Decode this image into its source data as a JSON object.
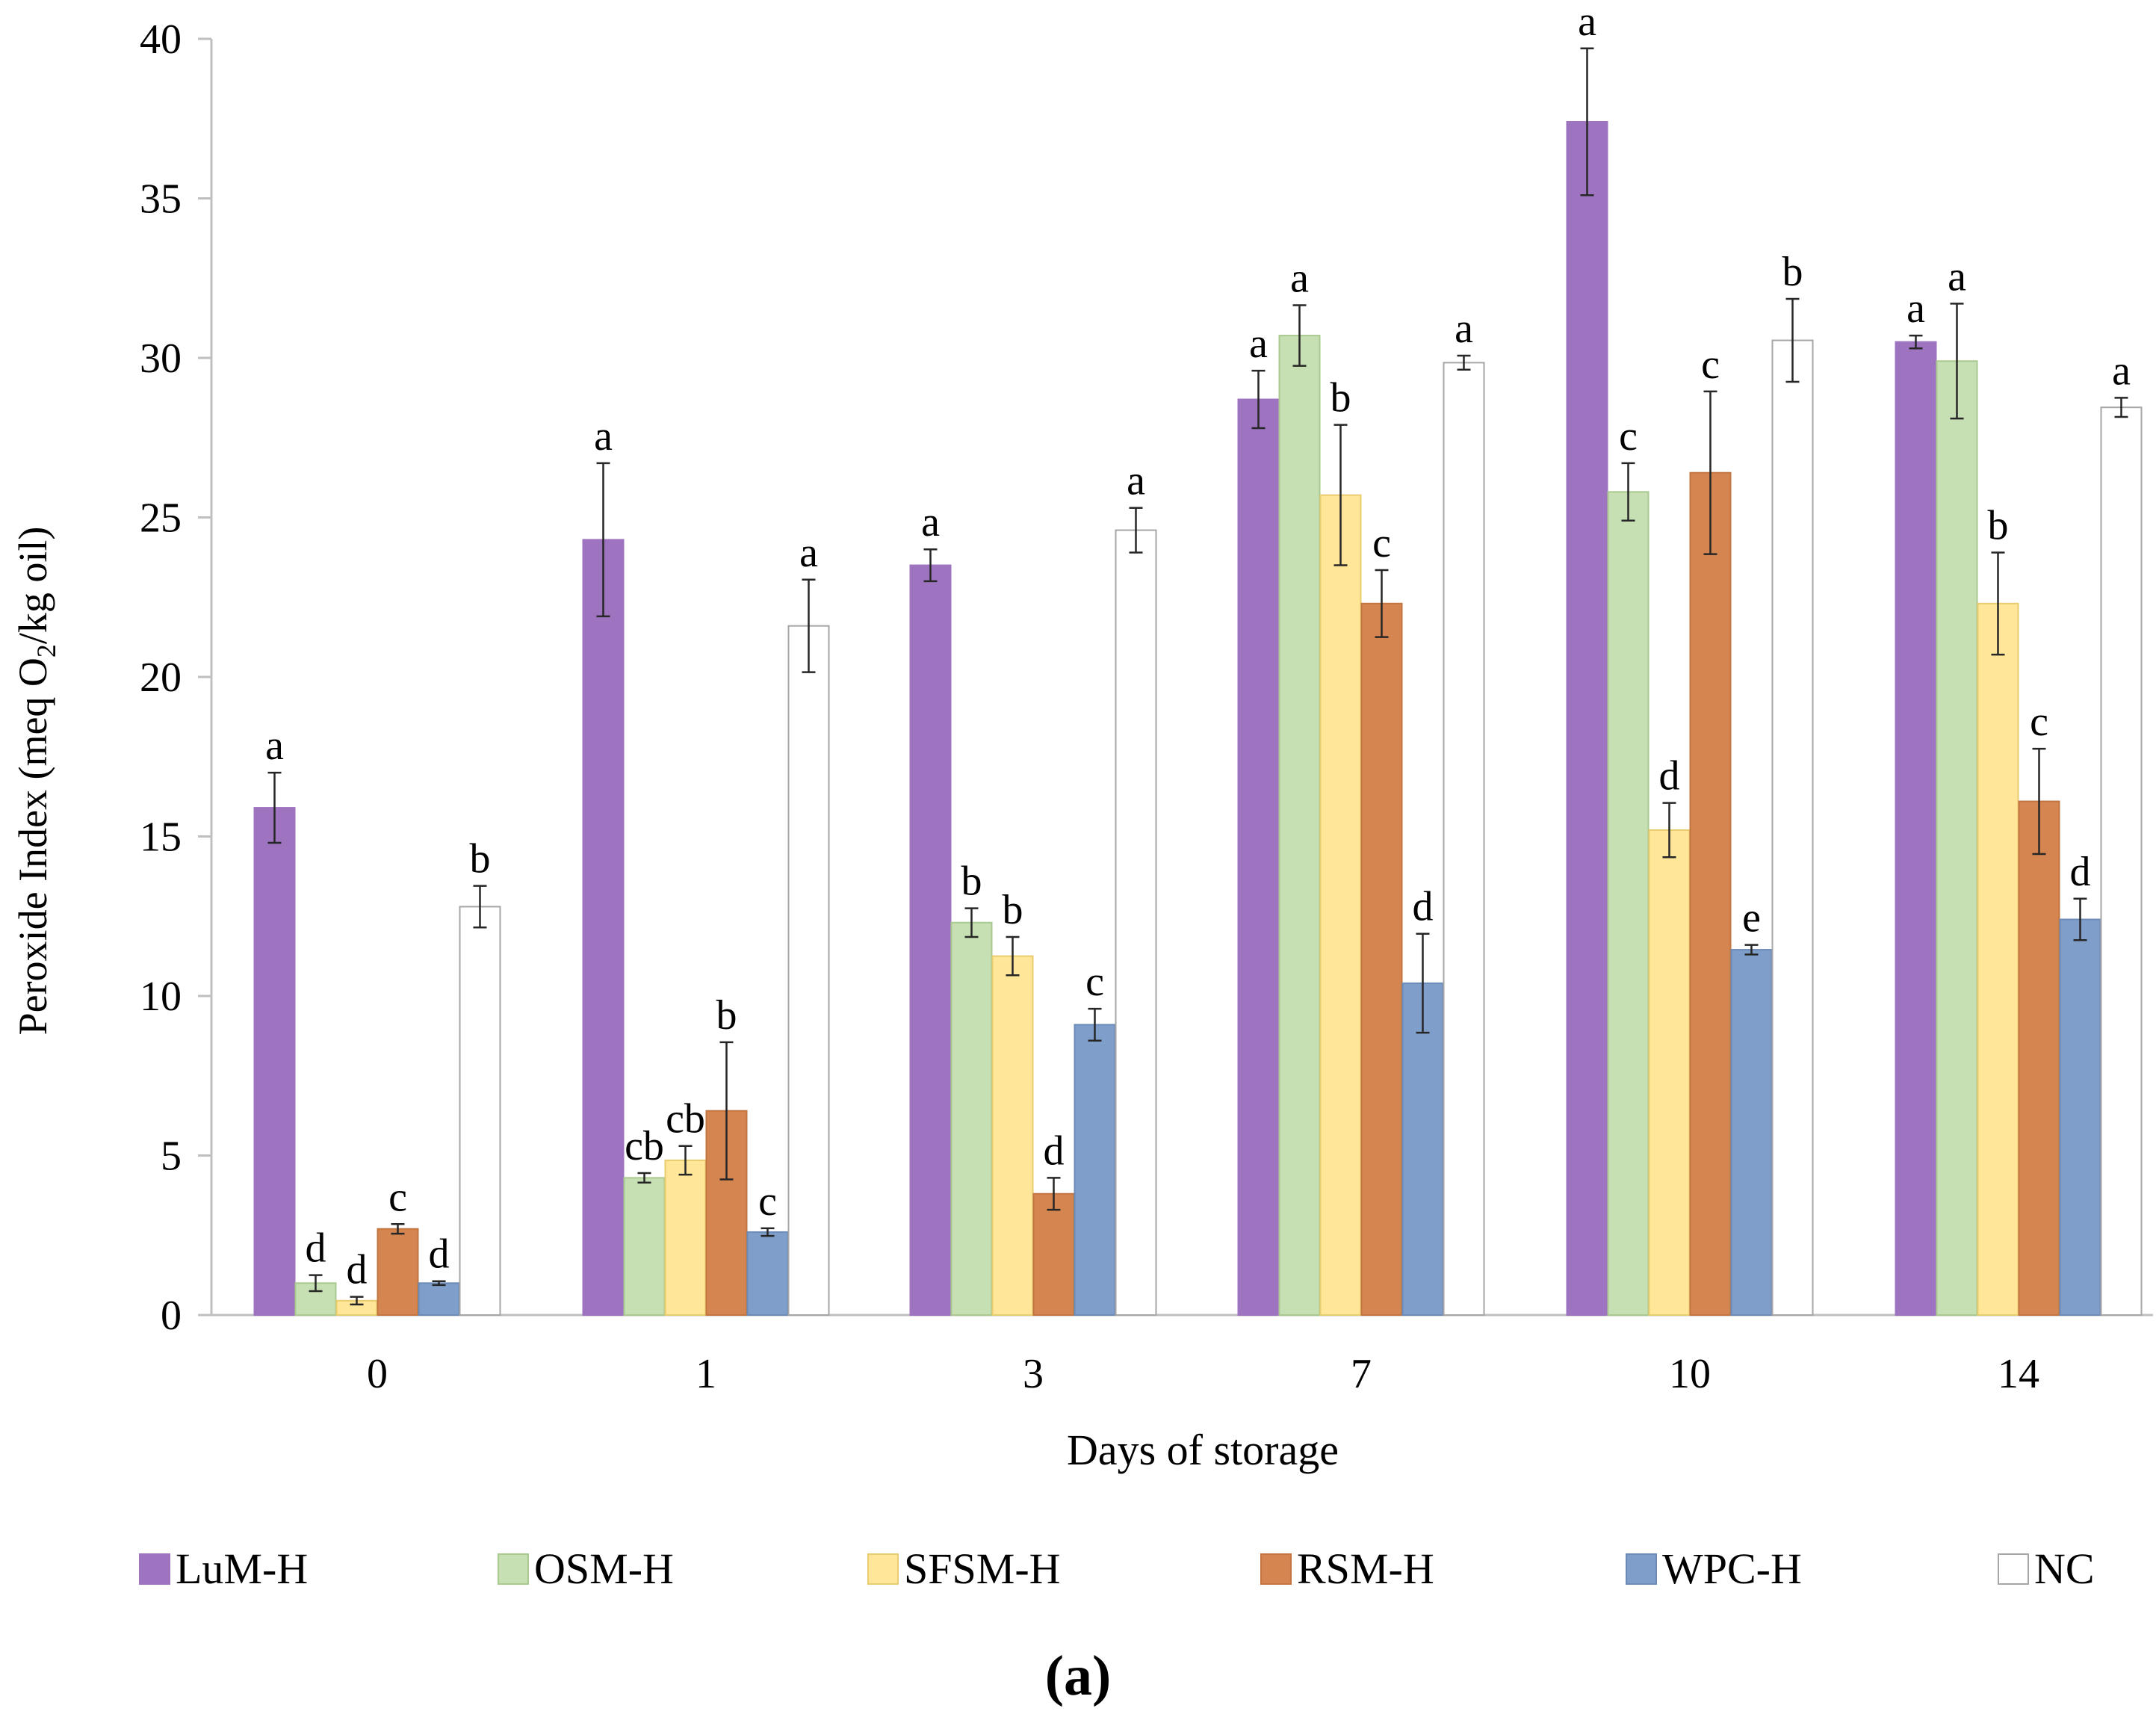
{
  "caption": "(a)",
  "chart_data": {
    "type": "bar",
    "title": "",
    "xlabel": "Days of storage",
    "ylabel_parts": {
      "before": "Peroxide Index (meq O",
      "sub": "2",
      "after": "/kg oil)"
    },
    "ylim": [
      0,
      40
    ],
    "yticks": [
      0,
      5,
      10,
      15,
      20,
      25,
      30,
      35,
      40
    ],
    "grid": false,
    "legend_position": "bottom",
    "categories": [
      "0",
      "1",
      "3",
      "7",
      "10",
      "14"
    ],
    "series": [
      {
        "name": "LuM-H",
        "color": "#9e74c1",
        "stroke": "#9e74c1",
        "values": [
          15.9,
          24.3,
          23.5,
          28.7,
          37.4,
          30.5
        ],
        "errors": [
          1.1,
          2.4,
          0.5,
          0.9,
          2.3,
          0.2
        ],
        "labels": [
          "a",
          "a",
          "a",
          "a",
          "a",
          "a"
        ]
      },
      {
        "name": "OSM-H",
        "color": "#c6e0b4",
        "stroke": "#a9c98f",
        "values": [
          1.0,
          4.3,
          12.3,
          30.7,
          25.8,
          29.9
        ],
        "errors": [
          0.25,
          0.15,
          0.45,
          0.95,
          0.9,
          1.8
        ],
        "labels": [
          "d",
          "cb",
          "b",
          "a",
          "c",
          "a"
        ]
      },
      {
        "name": "SFSM-H",
        "color": "#ffe699",
        "stroke": "#e8cc6e",
        "values": [
          0.45,
          4.85,
          11.25,
          25.7,
          15.2,
          22.3
        ],
        "errors": [
          0.12,
          0.45,
          0.6,
          2.2,
          0.85,
          1.6
        ],
        "labels": [
          "d",
          "cb",
          "b",
          "b",
          "d",
          "b"
        ]
      },
      {
        "name": "RSM-H",
        "color": "#d58650",
        "stroke": "#c27540",
        "values": [
          2.7,
          6.4,
          3.8,
          22.3,
          26.4,
          16.1
        ],
        "errors": [
          0.15,
          2.15,
          0.5,
          1.05,
          2.55,
          1.65
        ],
        "labels": [
          "c",
          "b",
          "d",
          "c",
          "c",
          "c"
        ]
      },
      {
        "name": "WPC-H",
        "color": "#7f9ec9",
        "stroke": "#6c8bb8",
        "values": [
          1.0,
          2.6,
          9.1,
          10.4,
          11.45,
          12.4
        ],
        "errors": [
          0.06,
          0.12,
          0.5,
          1.55,
          0.15,
          0.65
        ],
        "labels": [
          "d",
          "c",
          "c",
          "d",
          "e",
          "d"
        ]
      },
      {
        "name": "NC",
        "color": "#ffffff",
        "stroke": "#a6a6a6",
        "values": [
          12.8,
          21.6,
          24.6,
          29.85,
          30.55,
          28.45
        ],
        "errors": [
          0.65,
          1.45,
          0.7,
          0.22,
          1.3,
          0.3
        ],
        "labels": [
          "b",
          "a",
          "a",
          "a",
          "b",
          "a"
        ]
      }
    ]
  }
}
